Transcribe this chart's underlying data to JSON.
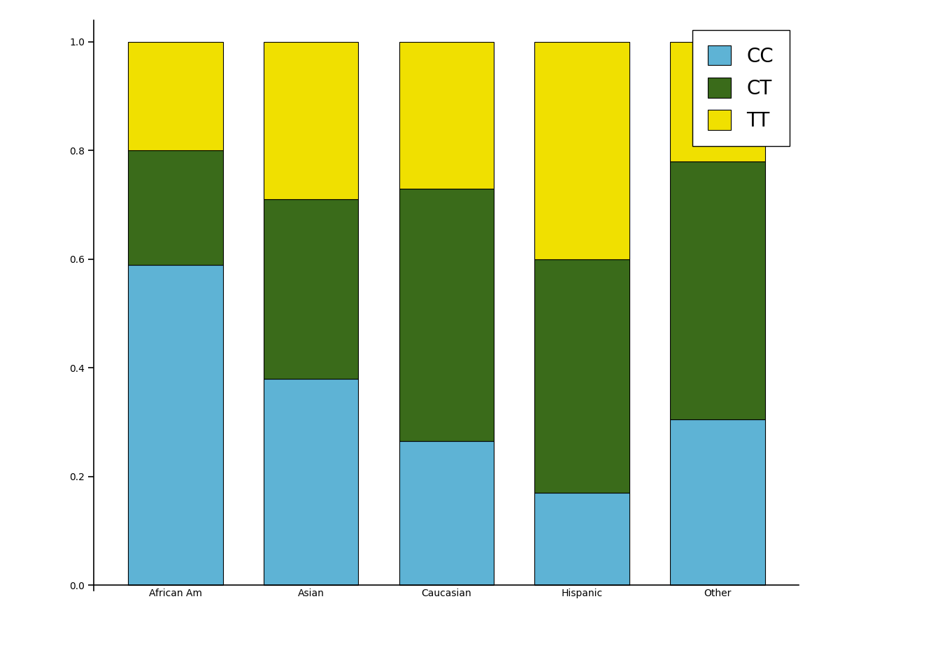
{
  "categories": [
    "African Am",
    "Asian",
    "Caucasian",
    "Hispanic",
    "Other"
  ],
  "CC": [
    0.59,
    0.38,
    0.265,
    0.17,
    0.305
  ],
  "CT": [
    0.21,
    0.33,
    0.465,
    0.43,
    0.475
  ],
  "TT": [
    0.2,
    0.29,
    0.27,
    0.4,
    0.22
  ],
  "colors": {
    "CC": "#5EB3D5",
    "CT": "#3A6B1A",
    "TT": "#F0E000"
  },
  "ylim": [
    0.0,
    1.0
  ],
  "yticks": [
    0.0,
    0.2,
    0.4,
    0.6,
    0.8,
    1.0
  ],
  "ytick_labels": [
    "0.0",
    "0.2",
    "0.4",
    "0.6",
    "0.8",
    "1.0"
  ],
  "background_color": "#ffffff",
  "bar_width": 0.7,
  "legend_labels": [
    "CC",
    "CT",
    "TT"
  ],
  "legend_colors": [
    "#5EB3D5",
    "#3A6B1A",
    "#F0E000"
  ],
  "figsize": [
    13.44,
    9.6
  ],
  "dpi": 100
}
